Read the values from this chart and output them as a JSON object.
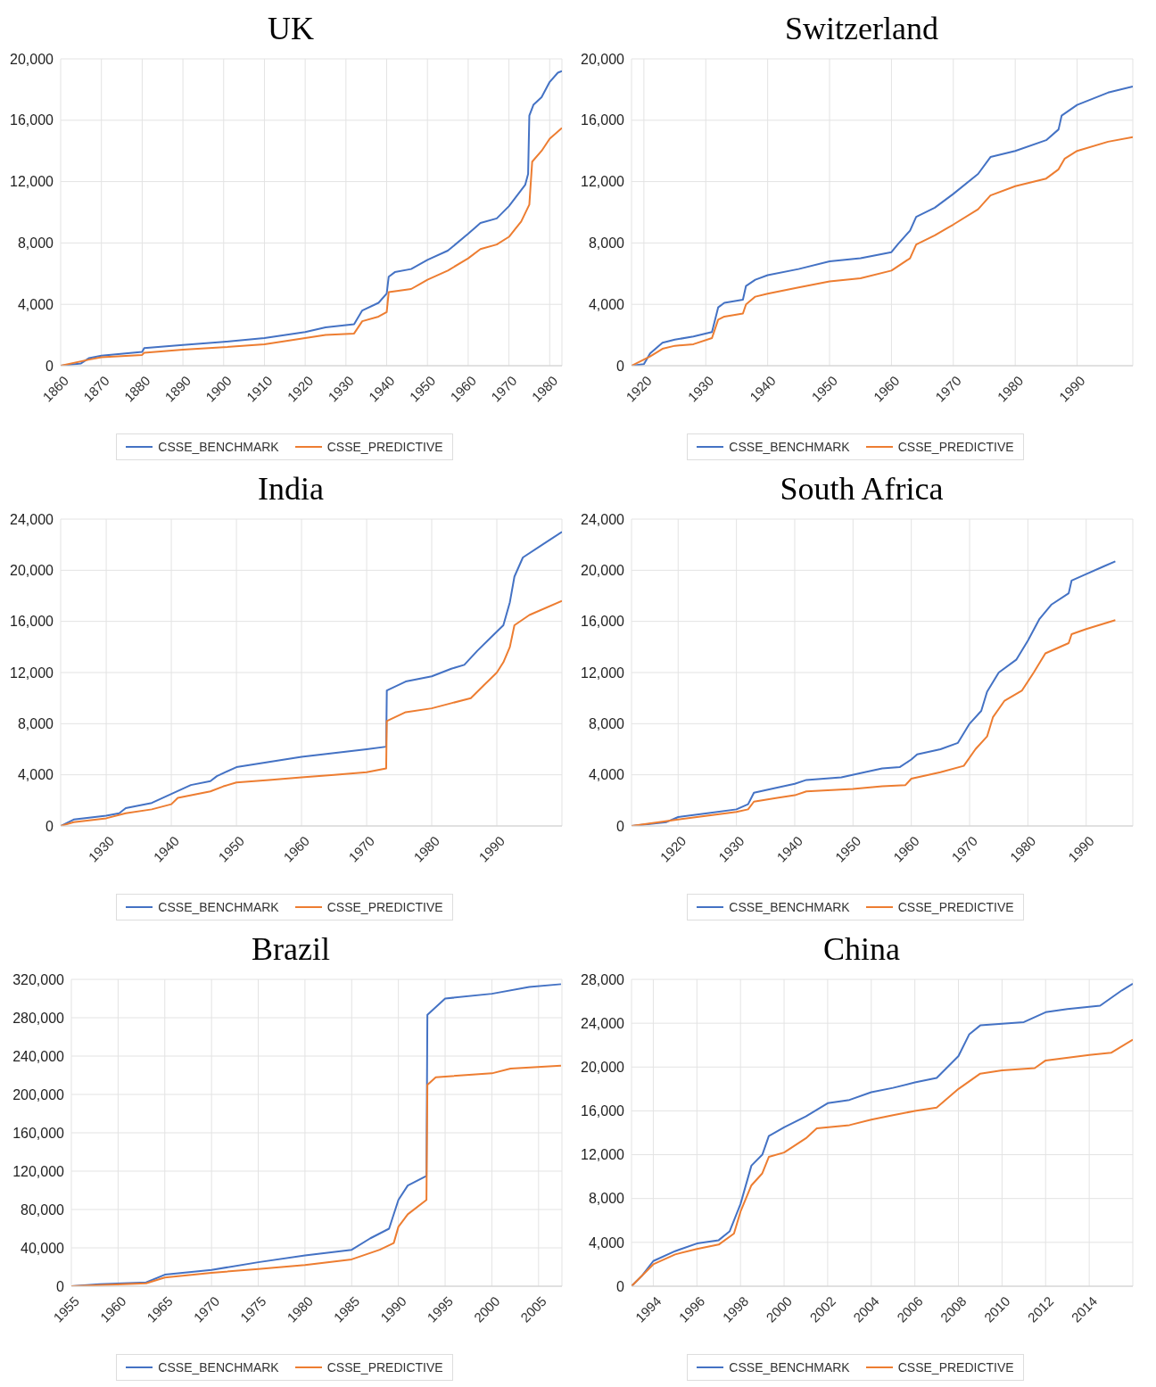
{
  "chart_data": [
    {
      "type": "line",
      "title": "UK",
      "grid": true,
      "legend": "bottom",
      "xlim": [
        1860,
        1983
      ],
      "xticks": [
        1860,
        1870,
        1880,
        1890,
        1900,
        1910,
        1920,
        1930,
        1940,
        1950,
        1960,
        1970,
        1980
      ],
      "ylim": [
        0,
        20000
      ],
      "yticks": [
        {
          "value": 0,
          "label": "0"
        },
        {
          "value": 4000,
          "label": "4,000"
        },
        {
          "value": 8000,
          "label": "8,000"
        },
        {
          "value": 12000,
          "label": "12,000"
        },
        {
          "value": 16000,
          "label": "16,000"
        },
        {
          "value": 20000,
          "label": "20,000"
        }
      ],
      "series": [
        {
          "name": "CSSE_BENCHMARK",
          "color": "#4472c4",
          "x": [
            1860,
            1865,
            1867,
            1870,
            1880,
            1880.5,
            1890,
            1900,
            1910,
            1920,
            1925,
            1932,
            1934,
            1938,
            1940,
            1940.5,
            1942,
            1946,
            1950,
            1955,
            1960,
            1963,
            1967,
            1970,
            1974,
            1974.7,
            1975,
            1976,
            1978,
            1980,
            1982,
            1983
          ],
          "values": [
            0,
            150,
            500,
            650,
            900,
            1150,
            1350,
            1550,
            1800,
            2200,
            2500,
            2700,
            3600,
            4100,
            4700,
            5800,
            6100,
            6300,
            6900,
            7500,
            8600,
            9300,
            9600,
            10400,
            11800,
            12500,
            16300,
            17000,
            17500,
            18500,
            19100,
            19200
          ]
        },
        {
          "name": "CSSE_PREDICTIVE",
          "color": "#ed7d31",
          "x": [
            1860,
            1867,
            1870,
            1880,
            1880.5,
            1890,
            1900,
            1910,
            1920,
            1925,
            1932,
            1934,
            1938,
            1940,
            1940.5,
            1946,
            1948,
            1950,
            1955,
            1960,
            1963,
            1967,
            1970,
            1973,
            1975,
            1975.7,
            1978,
            1980,
            1983
          ],
          "values": [
            0,
            400,
            550,
            700,
            850,
            1050,
            1200,
            1400,
            1800,
            2000,
            2100,
            2900,
            3200,
            3500,
            4800,
            5000,
            5300,
            5600,
            6200,
            7000,
            7600,
            7900,
            8400,
            9400,
            10500,
            13300,
            14000,
            14800,
            15500
          ]
        }
      ]
    },
    {
      "type": "line",
      "title": "Switzerland",
      "grid": true,
      "legend": "bottom",
      "xlim": [
        1918,
        1999
      ],
      "xticks": [
        1920,
        1930,
        1940,
        1950,
        1960,
        1970,
        1980,
        1990
      ],
      "ylim": [
        0,
        20000
      ],
      "yticks": [
        {
          "value": 0,
          "label": "0"
        },
        {
          "value": 4000,
          "label": "4,000"
        },
        {
          "value": 8000,
          "label": "8,000"
        },
        {
          "value": 12000,
          "label": "12,000"
        },
        {
          "value": 16000,
          "label": "16,000"
        },
        {
          "value": 20000,
          "label": "20,000"
        }
      ],
      "series": [
        {
          "name": "CSSE_BENCHMARK",
          "color": "#4472c4",
          "x": [
            1918,
            1920,
            1921,
            1923,
            1925,
            1928,
            1931,
            1932,
            1933,
            1936,
            1936.5,
            1938,
            1940,
            1945,
            1950,
            1955,
            1960,
            1961,
            1963,
            1964,
            1967,
            1970,
            1974,
            1976,
            1980,
            1985,
            1987,
            1987.5,
            1990,
            1995,
            1999
          ],
          "values": [
            0,
            100,
            800,
            1500,
            1700,
            1900,
            2200,
            3800,
            4100,
            4300,
            5200,
            5600,
            5900,
            6300,
            6800,
            7000,
            7400,
            7900,
            8800,
            9700,
            10300,
            11200,
            12500,
            13600,
            14000,
            14700,
            15400,
            16300,
            17000,
            17800,
            18200
          ]
        },
        {
          "name": "CSSE_PREDICTIVE",
          "color": "#ed7d31",
          "x": [
            1918,
            1921,
            1923,
            1925,
            1928,
            1931,
            1932,
            1933,
            1936,
            1936.5,
            1938,
            1940,
            1945,
            1950,
            1955,
            1960,
            1963,
            1964,
            1967,
            1970,
            1974,
            1976,
            1980,
            1985,
            1987,
            1988,
            1990,
            1995,
            1999
          ],
          "values": [
            0,
            600,
            1100,
            1300,
            1400,
            1800,
            3000,
            3200,
            3400,
            4000,
            4500,
            4700,
            5100,
            5500,
            5700,
            6200,
            7000,
            7900,
            8500,
            9200,
            10200,
            11100,
            11700,
            12200,
            12800,
            13500,
            14000,
            14600,
            14900
          ]
        }
      ]
    },
    {
      "type": "line",
      "title": "India",
      "grid": true,
      "legend": "bottom",
      "xlim": [
        1923,
        2000
      ],
      "xticks": [
        1930,
        1940,
        1950,
        1960,
        1970,
        1980,
        1990
      ],
      "ylim": [
        0,
        24000
      ],
      "yticks": [
        {
          "value": 0,
          "label": "0"
        },
        {
          "value": 4000,
          "label": "4,000"
        },
        {
          "value": 8000,
          "label": "8,000"
        },
        {
          "value": 12000,
          "label": "12,000"
        },
        {
          "value": 16000,
          "label": "16,000"
        },
        {
          "value": 20000,
          "label": "20,000"
        },
        {
          "value": 24000,
          "label": "24,000"
        }
      ],
      "series": [
        {
          "name": "CSSE_BENCHMARK",
          "color": "#4472c4",
          "x": [
            1923,
            1925,
            1930,
            1932,
            1933,
            1937,
            1940,
            1943,
            1946,
            1947,
            1950,
            1955,
            1960,
            1965,
            1970,
            1973,
            1973.1,
            1976,
            1980,
            1983,
            1985,
            1987,
            1989,
            1991,
            1992,
            1992.7,
            1994,
            1997,
            2000
          ],
          "values": [
            0,
            500,
            800,
            1000,
            1400,
            1800,
            2500,
            3200,
            3500,
            3900,
            4600,
            5000,
            5400,
            5700,
            6000,
            6200,
            10600,
            11300,
            11700,
            12300,
            12600,
            13700,
            14700,
            15700,
            17500,
            19500,
            21000,
            22000,
            23000
          ]
        },
        {
          "name": "CSSE_PREDICTIVE",
          "color": "#ed7d31",
          "x": [
            1923,
            1925,
            1930,
            1933,
            1937,
            1940,
            1941,
            1946,
            1948,
            1950,
            1955,
            1960,
            1965,
            1970,
            1973,
            1973.1,
            1976,
            1980,
            1983,
            1986,
            1988,
            1990,
            1991,
            1992,
            1992.7,
            1995,
            2000
          ],
          "values": [
            0,
            300,
            600,
            1000,
            1300,
            1700,
            2200,
            2700,
            3100,
            3400,
            3600,
            3800,
            4000,
            4200,
            4500,
            8200,
            8900,
            9200,
            9600,
            10000,
            11000,
            12000,
            12800,
            14000,
            15700,
            16500,
            17600
          ]
        }
      ]
    },
    {
      "type": "line",
      "title": "South Africa",
      "grid": true,
      "legend": "bottom",
      "xlim": [
        1912,
        1998
      ],
      "xticks": [
        1920,
        1930,
        1940,
        1950,
        1960,
        1970,
        1980,
        1990
      ],
      "ylim": [
        0,
        24000
      ],
      "yticks": [
        {
          "value": 0,
          "label": "0"
        },
        {
          "value": 4000,
          "label": "4,000"
        },
        {
          "value": 8000,
          "label": "8,000"
        },
        {
          "value": 12000,
          "label": "12,000"
        },
        {
          "value": 16000,
          "label": "16,000"
        },
        {
          "value": 20000,
          "label": "20,000"
        },
        {
          "value": 24000,
          "label": "24,000"
        }
      ],
      "series": [
        {
          "name": "CSSE_BENCHMARK",
          "color": "#4472c4",
          "x": [
            1912,
            1918,
            1920,
            1925,
            1930,
            1932,
            1933,
            1937,
            1940,
            1942,
            1948,
            1952,
            1955,
            1958,
            1960,
            1961,
            1965,
            1968,
            1970,
            1972,
            1973,
            1975,
            1978,
            1980,
            1982,
            1984,
            1987,
            1987.5,
            1990,
            1993,
            1995
          ],
          "values": [
            0,
            300,
            700,
            1000,
            1300,
            1700,
            2600,
            3000,
            3300,
            3600,
            3800,
            4200,
            4500,
            4600,
            5200,
            5600,
            6000,
            6500,
            8000,
            9000,
            10500,
            12000,
            13000,
            14500,
            16200,
            17300,
            18200,
            19200,
            19700,
            20300,
            20700
          ]
        },
        {
          "name": "CSSE_PREDICTIVE",
          "color": "#ed7d31",
          "x": [
            1912,
            1920,
            1925,
            1930,
            1932,
            1933,
            1937,
            1940,
            1942,
            1950,
            1955,
            1959,
            1960,
            1965,
            1969,
            1971,
            1973,
            1974,
            1976,
            1979,
            1981,
            1983,
            1987,
            1987.5,
            1990,
            1995
          ],
          "values": [
            0,
            500,
            800,
            1100,
            1300,
            1900,
            2200,
            2400,
            2700,
            2900,
            3100,
            3200,
            3700,
            4200,
            4700,
            6000,
            7000,
            8500,
            9800,
            10600,
            12000,
            13500,
            14300,
            15000,
            15400,
            16100
          ]
        }
      ]
    },
    {
      "type": "line",
      "title": "Brazil",
      "grid": true,
      "legend": "bottom",
      "xlim": [
        1955,
        2007.5
      ],
      "xticks": [
        1955,
        1960,
        1965,
        1970,
        1975,
        1980,
        1985,
        1990,
        1995,
        2000,
        2005
      ],
      "ylim": [
        0,
        320000
      ],
      "yticks": [
        {
          "value": 0,
          "label": "0"
        },
        {
          "value": 40000,
          "label": "40,000"
        },
        {
          "value": 80000,
          "label": "80,000"
        },
        {
          "value": 120000,
          "label": "120,000"
        },
        {
          "value": 160000,
          "label": "160,000"
        },
        {
          "value": 200000,
          "label": "200,000"
        },
        {
          "value": 240000,
          "label": "240,000"
        },
        {
          "value": 280000,
          "label": "280,000"
        },
        {
          "value": 320000,
          "label": "320,000"
        }
      ],
      "series": [
        {
          "name": "CSSE_BENCHMARK",
          "color": "#4472c4",
          "x": [
            1955,
            1958,
            1963,
            1965,
            1970,
            1975,
            1980,
            1985,
            1987,
            1989,
            1990,
            1991,
            1993,
            1993.1,
            1995,
            2000,
            2004,
            2007.4
          ],
          "values": [
            0,
            2000,
            4000,
            12000,
            17000,
            25000,
            32000,
            38000,
            50000,
            60000,
            90000,
            105000,
            115000,
            283000,
            300000,
            305000,
            312000,
            315000
          ]
        },
        {
          "name": "CSSE_PREDICTIVE",
          "color": "#ed7d31",
          "x": [
            1955,
            1963,
            1965,
            1970,
            1975,
            1980,
            1985,
            1988,
            1989.5,
            1990,
            1991,
            1993,
            1993.1,
            1994,
            2000,
            2002,
            2007.4
          ],
          "values": [
            0,
            3000,
            9000,
            14000,
            18000,
            22000,
            28000,
            38000,
            45000,
            62000,
            75000,
            90000,
            210000,
            218000,
            222000,
            227000,
            230000
          ]
        }
      ]
    },
    {
      "type": "line",
      "title": "China",
      "grid": true,
      "legend": "bottom",
      "xlim": [
        1993,
        2016
      ],
      "xticks": [
        1994,
        1996,
        1998,
        2000,
        2002,
        2004,
        2006,
        2008,
        2010,
        2012,
        2014
      ],
      "ylim": [
        0,
        28000
      ],
      "yticks": [
        {
          "value": 0,
          "label": "0"
        },
        {
          "value": 4000,
          "label": "4,000"
        },
        {
          "value": 8000,
          "label": "8,000"
        },
        {
          "value": 12000,
          "label": "12,000"
        },
        {
          "value": 16000,
          "label": "16,000"
        },
        {
          "value": 20000,
          "label": "20,000"
        },
        {
          "value": 24000,
          "label": "24,000"
        },
        {
          "value": 28000,
          "label": "28,000"
        }
      ],
      "series": [
        {
          "name": "CSSE_BENCHMARK",
          "color": "#4472c4",
          "x": [
            1993,
            1993.5,
            1994,
            1995,
            1996,
            1997,
            1997.5,
            1998,
            1998.5,
            1999,
            1999.3,
            2000,
            2001,
            2002,
            2003,
            2004,
            2005,
            2006,
            2007,
            2008,
            2008.5,
            2009,
            2011,
            2012,
            2013,
            2014.5,
            2015.5,
            2016
          ],
          "values": [
            0,
            1000,
            2300,
            3200,
            3900,
            4200,
            5000,
            7500,
            11000,
            12000,
            13700,
            14500,
            15500,
            16700,
            17000,
            17700,
            18100,
            18600,
            19000,
            21000,
            23000,
            23800,
            24100,
            25000,
            25300,
            25600,
            27000,
            27600
          ]
        },
        {
          "name": "CSSE_PREDICTIVE",
          "color": "#ed7d31",
          "x": [
            1993,
            1994,
            1995,
            1996,
            1997,
            1997.7,
            1998,
            1998.5,
            1999,
            1999.3,
            2000,
            2001,
            2001.5,
            2003,
            2004,
            2005,
            2006,
            2007,
            2008,
            2009,
            2010,
            2011.5,
            2012,
            2014,
            2015,
            2016
          ],
          "values": [
            0,
            2000,
            2900,
            3400,
            3800,
            4800,
            6800,
            9200,
            10300,
            11800,
            12200,
            13500,
            14400,
            14700,
            15200,
            15600,
            16000,
            16300,
            18000,
            19400,
            19700,
            19900,
            20600,
            21100,
            21300,
            22500
          ]
        }
      ]
    }
  ]
}
